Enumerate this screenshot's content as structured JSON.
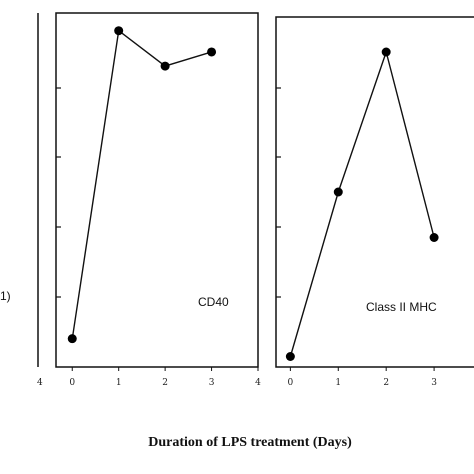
{
  "chart_data": [
    {
      "type": "line",
      "panel": "left (cropped)",
      "label": "1)",
      "x_ticks": [
        "4"
      ]
    },
    {
      "type": "line",
      "panel": "middle",
      "label": "CD40",
      "x": [
        0,
        1,
        2,
        3
      ],
      "y": [
        0.08,
        0.95,
        0.85,
        0.89
      ],
      "x_ticks": [
        "0",
        "1",
        "2",
        "3",
        "4"
      ],
      "xlim": [
        -0.35,
        4
      ],
      "ylim": [
        0,
        1
      ]
    },
    {
      "type": "line",
      "panel": "right",
      "label": "Class II MHC",
      "x": [
        0,
        1,
        2,
        3
      ],
      "y": [
        0.03,
        0.5,
        0.9,
        0.37
      ],
      "x_ticks": [
        "0",
        "1",
        "2",
        "3"
      ],
      "xlim": [
        -0.3,
        4
      ],
      "ylim": [
        0,
        1
      ]
    }
  ],
  "xlabel": "Duration of LPS treatment (Days)",
  "colors": {
    "line": "#111111",
    "marker": "#000000"
  }
}
